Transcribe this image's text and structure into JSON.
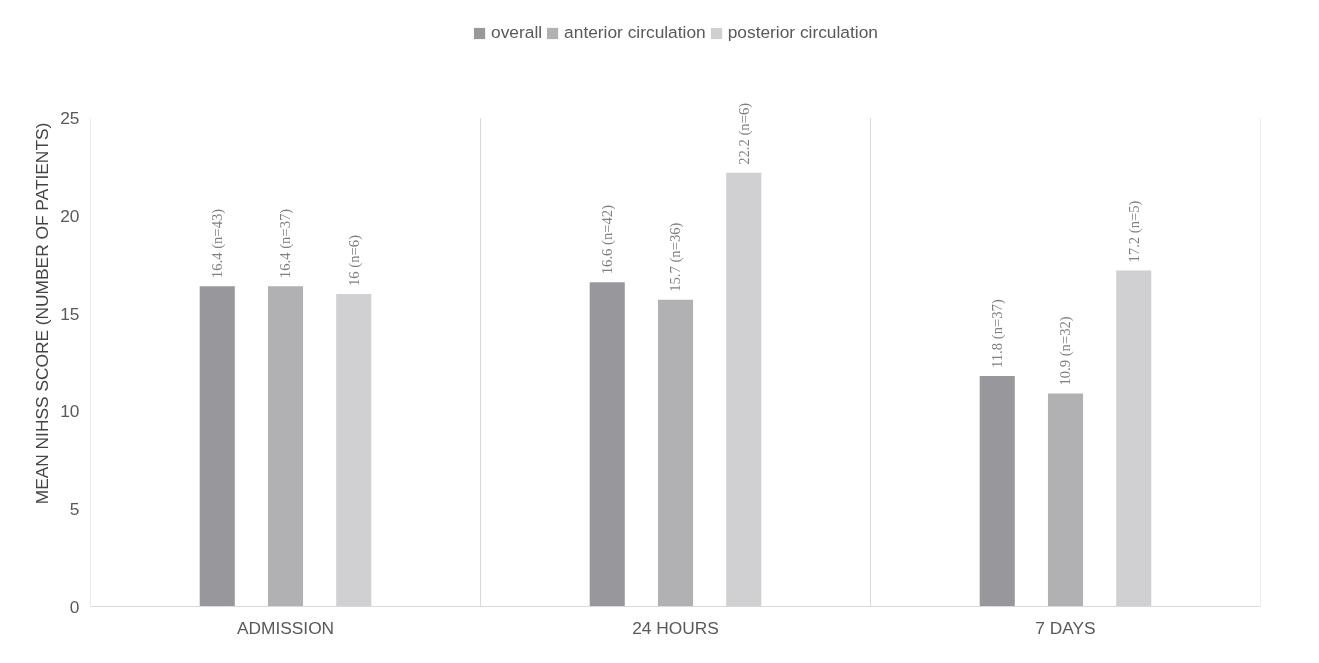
{
  "chart_data": {
    "type": "bar",
    "ylabel": "MEAN NIHSS SCORE (NUMBER OF PATIENTS)",
    "categories": [
      "ADMISSION",
      "24 HOURS",
      "7 DAYS"
    ],
    "series": [
      {
        "name": "overall",
        "color": "#98989c",
        "values": [
          16.4,
          16.6,
          11.8
        ],
        "value_labels": [
          "16.4 (n=43)",
          "16.6 (n=42)",
          "11.8 (n=37)"
        ]
      },
      {
        "name": "anterior circulation",
        "color": "#b1b1b4",
        "values": [
          16.4,
          15.7,
          10.9
        ],
        "value_labels": [
          "16.4 (n=37)",
          "15.7 (n=36)",
          "10.9 (n=32)"
        ]
      },
      {
        "name": "posterior circulation",
        "color": "#d0d0d2",
        "values": [
          16,
          22.2,
          17.2
        ],
        "value_labels": [
          "16 (n=6)",
          "22.2 (n=6)",
          "17.2 (n=5)"
        ]
      }
    ],
    "ylim": [
      0,
      25
    ],
    "yticks": [
      0,
      5,
      10,
      15,
      20,
      25
    ],
    "grid": "x",
    "legend": "top"
  }
}
